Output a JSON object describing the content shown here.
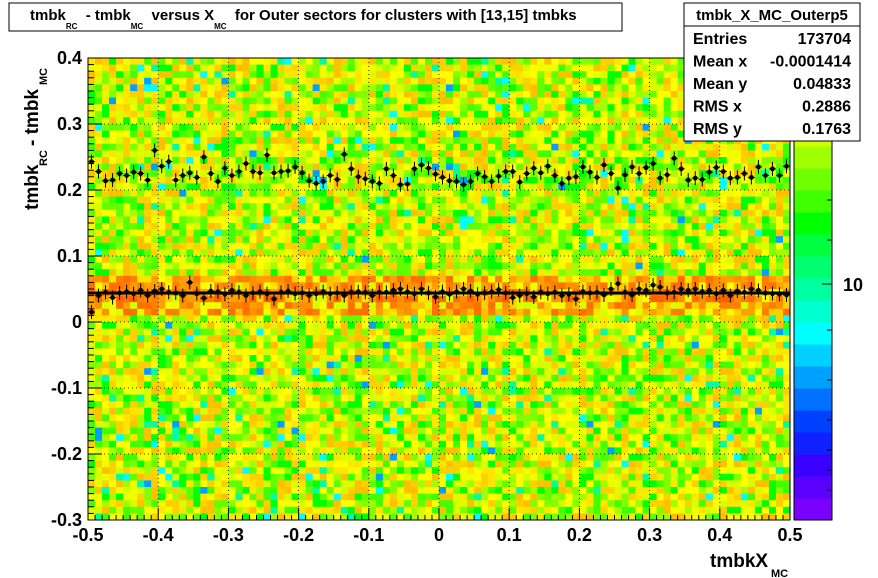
{
  "title": {
    "parts": [
      {
        "text": "tmbk",
        "sub": "RC"
      },
      {
        "text": " - tmbk",
        "sub": "MC"
      },
      {
        "text": " versus X",
        "sub": "MC"
      },
      {
        "text": " for Outer sectors for clusters with [13,15] tmbks",
        "sub": ""
      }
    ]
  },
  "stats": {
    "name": "tmbk_X_MC_Outerp5",
    "rows": [
      {
        "label": "Entries",
        "value": "173704"
      },
      {
        "label": "Mean x",
        "value": "-0.0001414"
      },
      {
        "label": "Mean y",
        "value": "0.04833"
      },
      {
        "label": "RMS x",
        "value": "0.2886"
      },
      {
        "label": "RMS y",
        "value": "0.1763"
      }
    ]
  },
  "colorbar": {
    "tick_label": "10",
    "palette": [
      "#7a00ff",
      "#5a00ff",
      "#3a00ff",
      "#1020ff",
      "#0040ff",
      "#0070ff",
      "#00a0ff",
      "#00d0ff",
      "#00ffff",
      "#00ffd0",
      "#00ffa0",
      "#00ff70",
      "#00ff40",
      "#00ff00",
      "#40ff00",
      "#70ff00",
      "#a0ff00",
      "#d0ff00",
      "#ffff00",
      "#ffe000",
      "#ffc000"
    ]
  },
  "chart_data": {
    "type": "heatmap",
    "title": "tmbk_RC - tmbk_MC versus X_MC for Outer sectors for clusters with [13,15] tmbks",
    "xlabel": "tmbkX_MC",
    "ylabel": "tmbk_RC - tmbk_MC",
    "xlim": [
      -0.5,
      0.5
    ],
    "ylim": [
      -0.3,
      0.4
    ],
    "x_ticks": [
      "-0.5",
      "-0.4",
      "-0.3",
      "-0.2",
      "-0.1",
      "0",
      "0.1",
      "0.2",
      "0.3",
      "0.4",
      "0.5"
    ],
    "y_ticks": [
      "-0.3",
      "-0.2",
      "-0.1",
      "0",
      "0.1",
      "0.2",
      "0.3",
      "0.4"
    ],
    "grid": true,
    "fit_line_y": 0.044,
    "profile_upper": {
      "x": [
        -0.495,
        -0.485,
        -0.475,
        -0.465,
        -0.455,
        -0.445,
        -0.435,
        -0.425,
        -0.415,
        -0.405,
        -0.395,
        -0.385,
        -0.375,
        -0.365,
        -0.355,
        -0.345,
        -0.335,
        -0.325,
        -0.315,
        -0.305,
        -0.295,
        -0.285,
        -0.275,
        -0.265,
        -0.255,
        -0.245,
        -0.235,
        -0.225,
        -0.215,
        -0.205,
        -0.195,
        -0.185,
        -0.175,
        -0.165,
        -0.155,
        -0.145,
        -0.135,
        -0.125,
        -0.115,
        -0.105,
        -0.095,
        -0.085,
        -0.075,
        -0.065,
        -0.055,
        -0.045,
        -0.035,
        -0.025,
        -0.015,
        -0.005,
        0.005,
        0.015,
        0.025,
        0.035,
        0.045,
        0.055,
        0.065,
        0.075,
        0.085,
        0.095,
        0.105,
        0.115,
        0.125,
        0.135,
        0.145,
        0.155,
        0.165,
        0.175,
        0.185,
        0.195,
        0.205,
        0.215,
        0.225,
        0.235,
        0.245,
        0.255,
        0.265,
        0.275,
        0.285,
        0.295,
        0.305,
        0.315,
        0.325,
        0.335,
        0.345,
        0.355,
        0.365,
        0.375,
        0.385,
        0.395,
        0.405,
        0.415,
        0.425,
        0.435,
        0.445,
        0.455,
        0.465,
        0.475,
        0.485,
        0.495
      ],
      "y": [
        0.243,
        0.228,
        0.214,
        0.215,
        0.225,
        0.222,
        0.227,
        0.225,
        0.215,
        0.26,
        0.236,
        0.243,
        0.215,
        0.222,
        0.226,
        0.219,
        0.25,
        0.225,
        0.213,
        0.233,
        0.222,
        0.228,
        0.24,
        0.228,
        0.226,
        0.253,
        0.226,
        0.228,
        0.229,
        0.235,
        0.226,
        0.214,
        0.21,
        0.213,
        0.222,
        0.216,
        0.254,
        0.232,
        0.22,
        0.217,
        0.213,
        0.21,
        0.232,
        0.222,
        0.208,
        0.209,
        0.232,
        0.238,
        0.233,
        0.224,
        0.219,
        0.214,
        0.213,
        0.208,
        0.213,
        0.225,
        0.22,
        0.213,
        0.221,
        0.228,
        0.228,
        0.212,
        0.225,
        0.233,
        0.226,
        0.236,
        0.222,
        0.21,
        0.218,
        0.22,
        0.235,
        0.227,
        0.219,
        0.238,
        0.225,
        0.203,
        0.223,
        0.235,
        0.225,
        0.234,
        0.24,
        0.218,
        0.223,
        0.248,
        0.232,
        0.215,
        0.218,
        0.216,
        0.227,
        0.234,
        0.228,
        0.218,
        0.219,
        0.225,
        0.219,
        0.235,
        0.222,
        0.232,
        0.222,
        0.236
      ]
    },
    "profile_lower": {
      "x": [
        -0.495,
        -0.485,
        -0.475,
        -0.465,
        -0.455,
        -0.445,
        -0.435,
        -0.425,
        -0.415,
        -0.405,
        -0.395,
        -0.385,
        -0.375,
        -0.365,
        -0.355,
        -0.345,
        -0.335,
        -0.325,
        -0.315,
        -0.305,
        -0.295,
        -0.285,
        -0.275,
        -0.265,
        -0.255,
        -0.245,
        -0.235,
        -0.225,
        -0.215,
        -0.205,
        -0.195,
        -0.185,
        -0.175,
        -0.165,
        -0.155,
        -0.145,
        -0.135,
        -0.125,
        -0.115,
        -0.105,
        -0.095,
        -0.085,
        -0.075,
        -0.065,
        -0.055,
        -0.045,
        -0.035,
        -0.025,
        -0.015,
        -0.005,
        0.005,
        0.015,
        0.025,
        0.035,
        0.045,
        0.055,
        0.065,
        0.075,
        0.085,
        0.095,
        0.105,
        0.115,
        0.125,
        0.135,
        0.145,
        0.155,
        0.165,
        0.175,
        0.185,
        0.195,
        0.205,
        0.215,
        0.225,
        0.235,
        0.245,
        0.255,
        0.265,
        0.275,
        0.285,
        0.295,
        0.305,
        0.315,
        0.325,
        0.335,
        0.345,
        0.355,
        0.365,
        0.375,
        0.385,
        0.395,
        0.405,
        0.415,
        0.425,
        0.435,
        0.445,
        0.455,
        0.465,
        0.475,
        0.485,
        0.495
      ],
      "y": [
        0.015,
        0.04,
        0.045,
        0.037,
        0.044,
        0.046,
        0.043,
        0.048,
        0.04,
        0.047,
        0.05,
        0.045,
        0.044,
        0.04,
        0.06,
        0.043,
        0.036,
        0.047,
        0.046,
        0.042,
        0.048,
        0.045,
        0.04,
        0.044,
        0.046,
        0.043,
        0.035,
        0.045,
        0.047,
        0.043,
        0.044,
        0.04,
        0.043,
        0.046,
        0.043,
        0.044,
        0.04,
        0.045,
        0.046,
        0.045,
        0.04,
        0.045,
        0.045,
        0.048,
        0.05,
        0.046,
        0.043,
        0.05,
        0.044,
        0.038,
        0.046,
        0.042,
        0.046,
        0.05,
        0.047,
        0.042,
        0.044,
        0.046,
        0.049,
        0.044,
        0.037,
        0.04,
        0.043,
        0.038,
        0.045,
        0.043,
        0.045,
        0.04,
        0.042,
        0.035,
        0.046,
        0.044,
        0.045,
        0.041,
        0.05,
        0.058,
        0.045,
        0.041,
        0.05,
        0.048,
        0.056,
        0.053,
        0.044,
        0.045,
        0.05,
        0.048,
        0.05,
        0.046,
        0.048,
        0.043,
        0.048,
        0.04,
        0.047,
        0.045,
        0.05,
        0.048,
        0.044,
        0.043,
        0.042,
        0.041
      ]
    }
  }
}
